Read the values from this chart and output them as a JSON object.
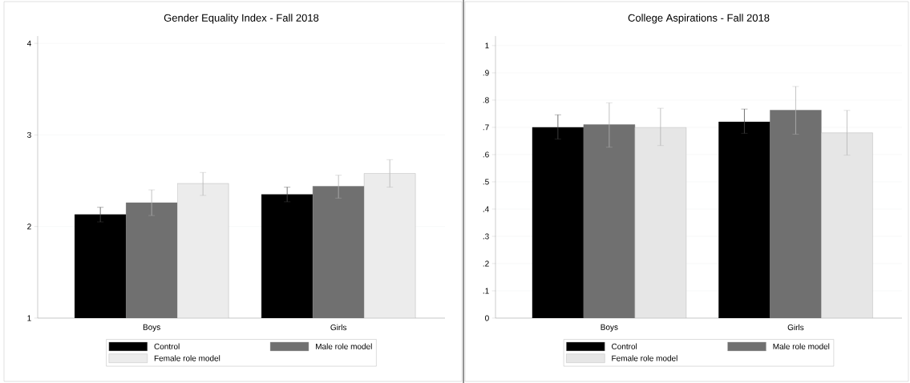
{
  "chart_data": [
    {
      "type": "bar",
      "title": "Gender Equality Index - Fall 2018",
      "categories": [
        "Boys",
        "Girls"
      ],
      "series": [
        {
          "name": "Control",
          "color": "#000000",
          "values": [
            2.13,
            2.35
          ],
          "errors": [
            [
              2.05,
              2.21
            ],
            [
              2.27,
              2.43
            ]
          ]
        },
        {
          "name": "Male role model",
          "color": "#707070",
          "values": [
            2.26,
            2.44
          ],
          "errors": [
            [
              2.12,
              2.4
            ],
            [
              2.31,
              2.56
            ]
          ]
        },
        {
          "name": "Female role model",
          "color": "#ececec",
          "values": [
            2.47,
            2.58
          ],
          "errors": [
            [
              2.34,
              2.59
            ],
            [
              2.43,
              2.73
            ]
          ]
        }
      ],
      "ylim": [
        1,
        4.08
      ],
      "yticks": [
        1,
        2,
        3,
        4
      ],
      "grid": "y",
      "legend": "bottom"
    },
    {
      "type": "bar",
      "title": "College Aspirations - Fall 2018",
      "categories": [
        "Boys",
        "Girls"
      ],
      "series": [
        {
          "name": "Control",
          "color": "#000000",
          "values": [
            0.7,
            0.72
          ],
          "errors": [
            [
              0.657,
              0.746
            ],
            [
              0.678,
              0.767
            ]
          ]
        },
        {
          "name": "Male role model",
          "color": "#707070",
          "values": [
            0.71,
            0.763
          ],
          "errors": [
            [
              0.627,
              0.79
            ],
            [
              0.675,
              0.85
            ]
          ]
        },
        {
          "name": "Female role model",
          "color": "#e6e6e6",
          "values": [
            0.7,
            0.68
          ],
          "errors": [
            [
              0.633,
              0.77
            ],
            [
              0.598,
              0.762
            ]
          ]
        }
      ],
      "ylim": [
        0,
        1.035
      ],
      "yticks": [
        0,
        {
          "value": 0.1,
          "label": ".1"
        },
        {
          "value": 0.2,
          "label": ".2"
        },
        {
          "value": 0.3,
          "label": ".3"
        },
        {
          "value": 0.4,
          "label": ".4"
        },
        {
          "value": 0.5,
          "label": ".5"
        },
        {
          "value": 0.6,
          "label": ".6"
        },
        {
          "value": 0.7,
          "label": ".7"
        },
        {
          "value": 0.8,
          "label": ".8"
        },
        {
          "value": 0.9,
          "label": ".9"
        },
        1
      ],
      "grid": "y",
      "legend": "bottom"
    }
  ]
}
